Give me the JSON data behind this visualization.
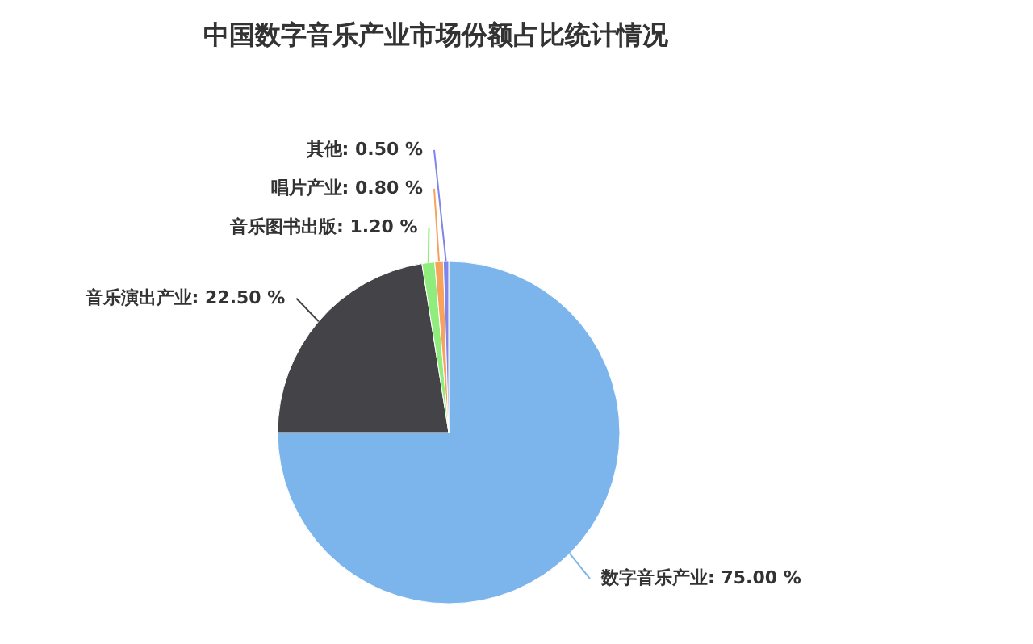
{
  "chart_data": {
    "type": "pie",
    "title": "中国数字音乐产业市场份额占比统计情况",
    "categories": [
      "数字音乐产业",
      "音乐演出产业",
      "音乐图书出版",
      "唱片产业",
      "其他"
    ],
    "values": [
      75.0,
      22.5,
      1.2,
      0.8,
      0.5
    ],
    "value_labels": [
      "75.00 %",
      "22.50 %",
      "1.20 %",
      "0.80 %",
      "0.50 %"
    ],
    "colors": [
      "#7cb5ec",
      "#434348",
      "#90ed7d",
      "#f7a35c",
      "#8085e9"
    ],
    "legend": false
  }
}
